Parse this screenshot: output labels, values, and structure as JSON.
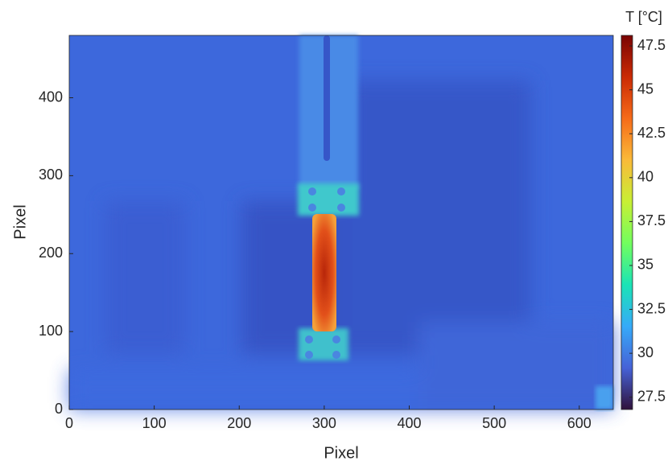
{
  "chart_data": {
    "type": "heatmap",
    "xlabel": "Pixel",
    "ylabel": "Pixel",
    "xlim": [
      0,
      640
    ],
    "xticks": [
      0,
      100,
      200,
      300,
      400,
      500,
      600
    ],
    "ylim": [
      0,
      480
    ],
    "yticks": [
      0,
      100,
      200,
      300,
      400
    ],
    "colorbar": {
      "label": "T [°C]",
      "lim": [
        26.8,
        48.1
      ],
      "ticks": [
        27.5,
        30,
        32.5,
        35,
        37.5,
        40,
        42.5,
        45,
        47.5
      ],
      "colors": [
        "#30123b",
        "#4662d7",
        "#36aaf9",
        "#1ae4b6",
        "#72fe5e",
        "#c8ef34",
        "#faba39",
        "#f66b19",
        "#ca2a04",
        "#7a0403"
      ]
    }
  }
}
